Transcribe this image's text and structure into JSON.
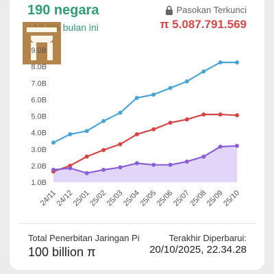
{
  "header": {
    "country_count": "190 negara",
    "monthly_change": "+13.2% bulan ini",
    "locked_label": "Pasokan Terkunci",
    "locked_value": "π 5.087.791.569"
  },
  "footer": {
    "total_label": "Total Penerbitan Jaringan Pi",
    "total_value": "100 billion π",
    "updated_label": "Terakhir Diperbarui:",
    "updated_value": "20/10/2025, 22.34.28"
  },
  "icons": {
    "lock": "lock-icon",
    "logo": "pi-logo"
  },
  "colors": {
    "green": "#2e9e72",
    "red": "#d64545",
    "blue": "#4aa3d4",
    "purple": "#8a5ed6",
    "purple_fill": "#dccff8"
  },
  "chart_data": {
    "type": "line",
    "categories": [
      "24/11",
      "24/12",
      "25/01",
      "25/02",
      "25/03",
      "25/04",
      "25/05",
      "25/06",
      "25/07",
      "25/08",
      "25/09",
      "25/10"
    ],
    "ylim": [
      1.0,
      9.0
    ],
    "yticks": [
      "1.0B",
      "2.0B",
      "3.0B",
      "4.0B",
      "5.0B",
      "6.0B",
      "7.0B",
      "8.0B",
      "9.0B"
    ],
    "grid": false,
    "series": [
      {
        "color": "#4aa3d4",
        "fill": false,
        "values": [
          3.4,
          3.9,
          4.1,
          4.7,
          5.2,
          6.1,
          6.3,
          6.7,
          7.1,
          7.7,
          8.25,
          8.25
        ]
      },
      {
        "color": "#d64545",
        "fill": false,
        "values": [
          1.65,
          2.0,
          2.55,
          2.95,
          3.3,
          3.9,
          4.2,
          4.6,
          4.8,
          5.1,
          5.1,
          5.05
        ]
      },
      {
        "color": "#8a5ed6",
        "fill": true,
        "values": [
          1.75,
          1.85,
          1.55,
          1.75,
          1.9,
          2.15,
          2.05,
          2.05,
          2.25,
          2.55,
          3.15,
          3.2
        ]
      }
    ]
  }
}
